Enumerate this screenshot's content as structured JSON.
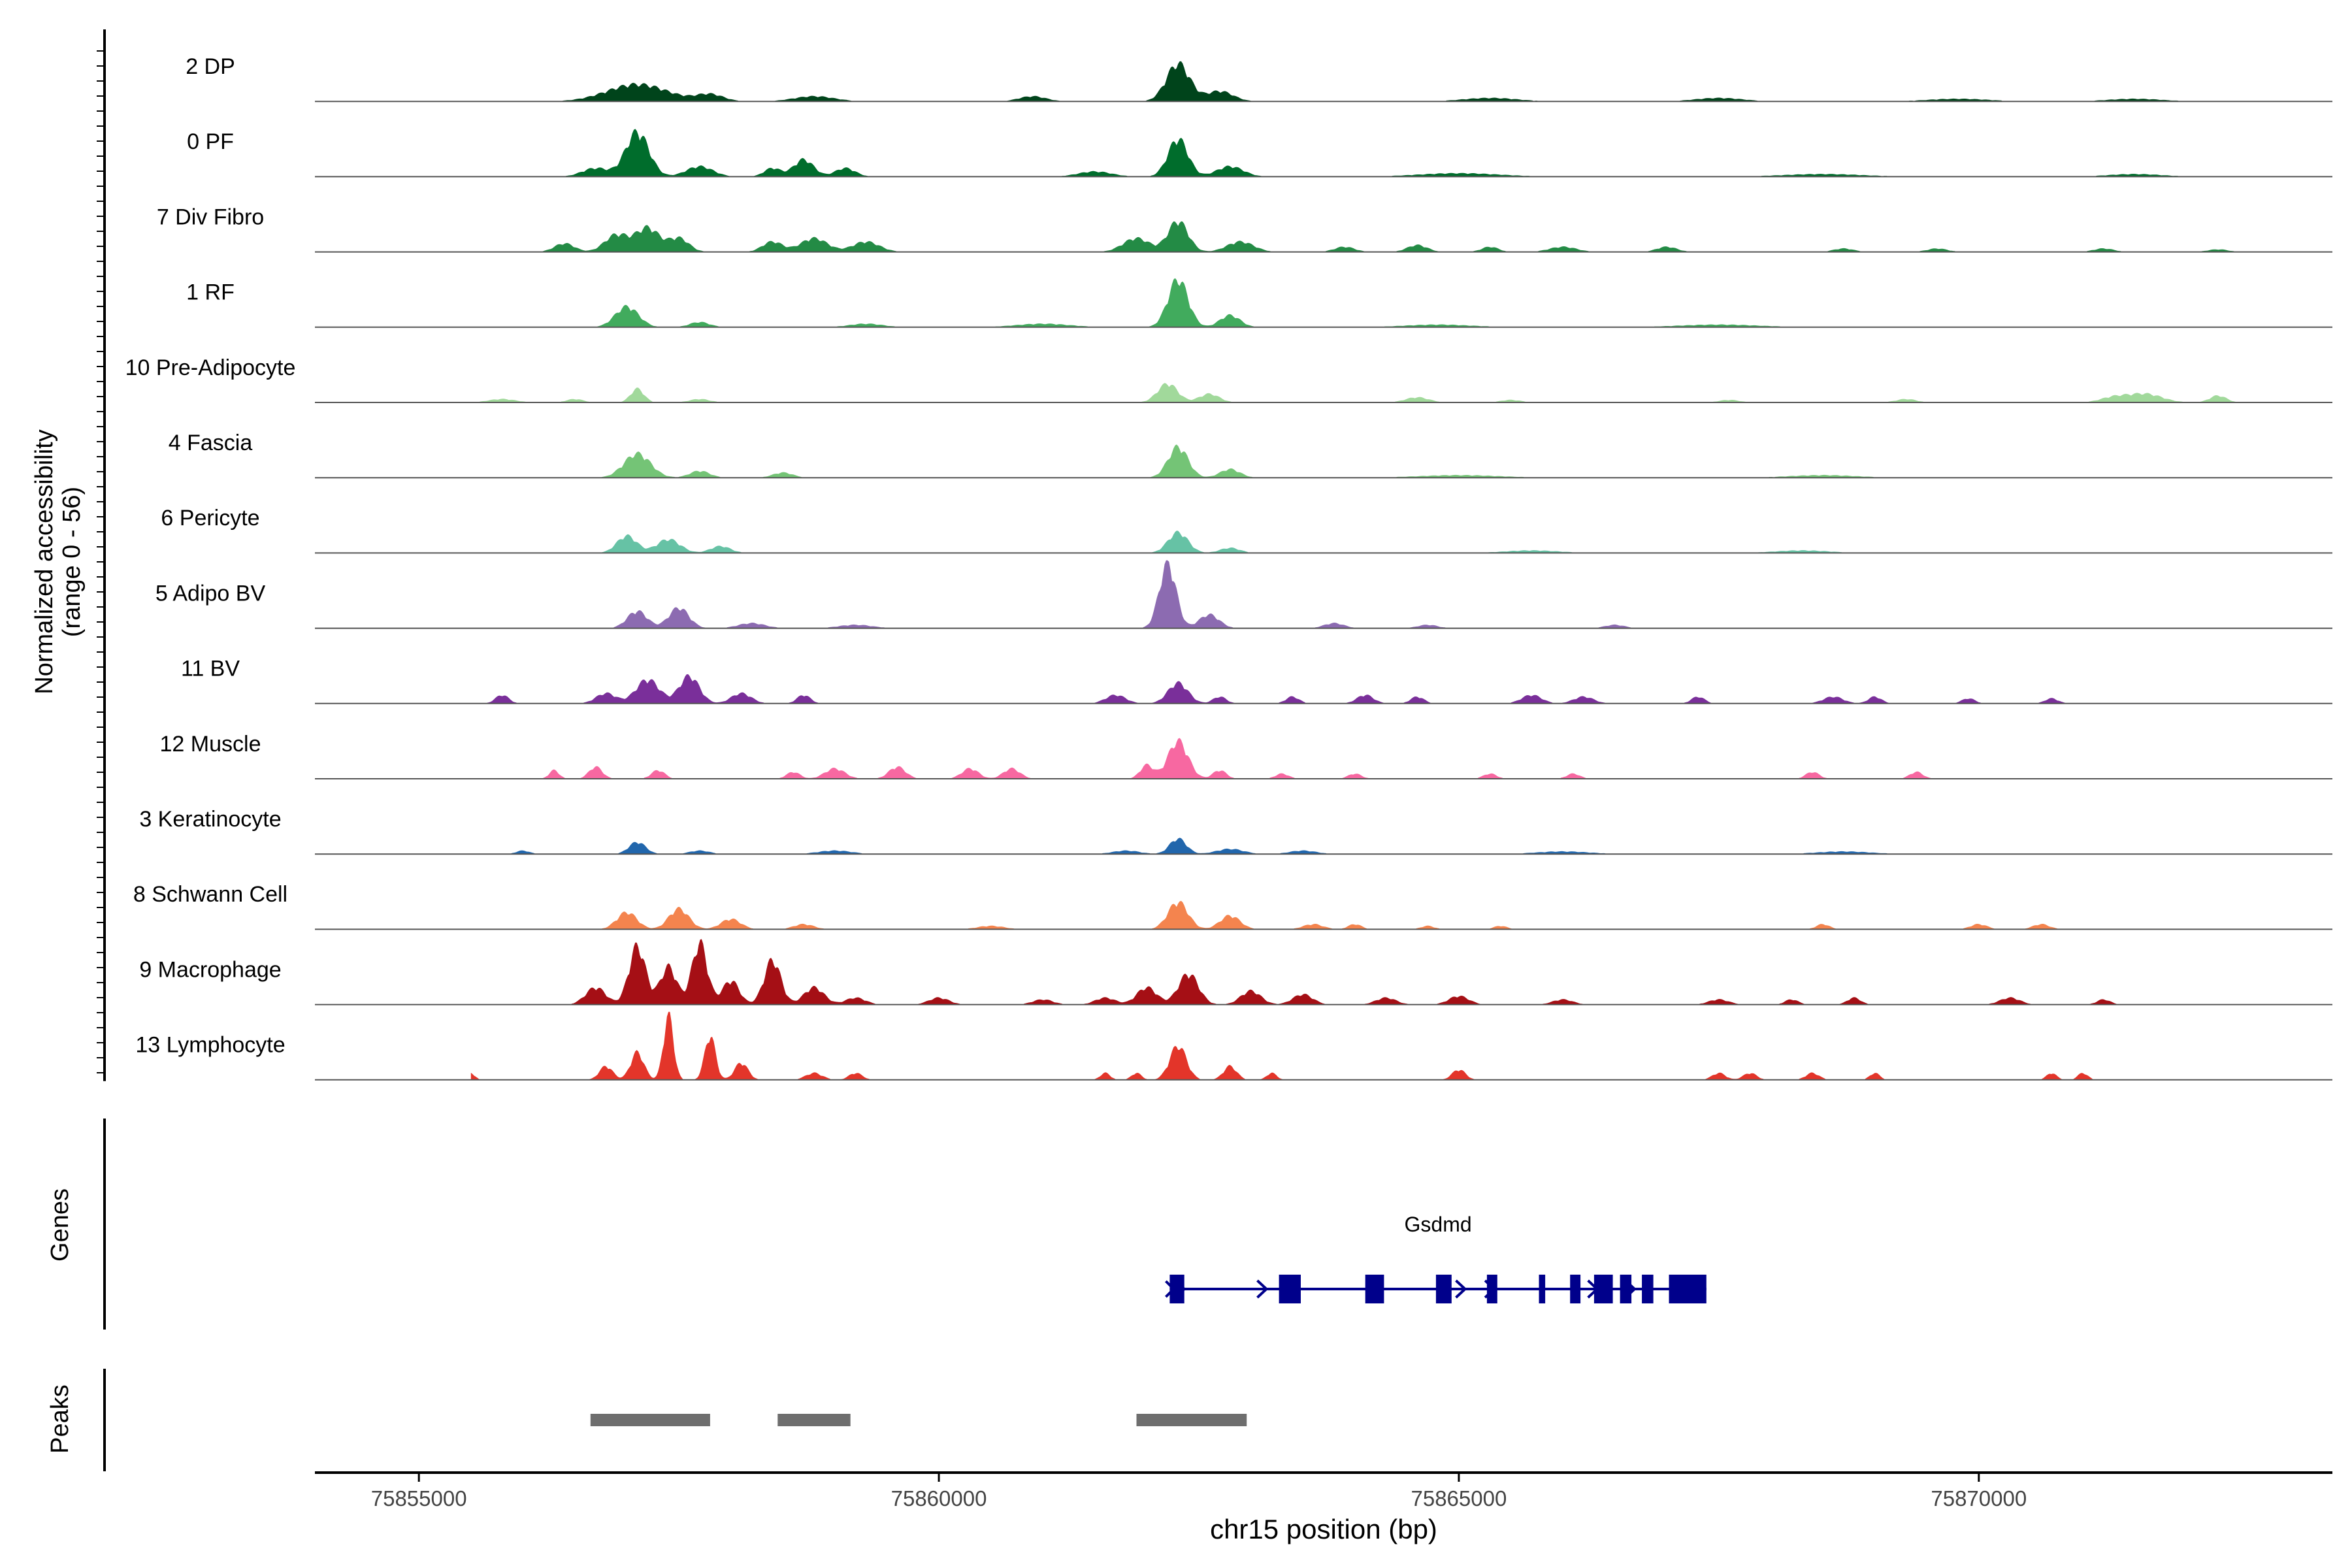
{
  "chart_data": {
    "type": "area",
    "title": "",
    "ylabel_line1": "Normalized accessibility",
    "ylabel_line2": "(range 0 - 56)",
    "genes_label": "Genes",
    "peaks_label": "Peaks",
    "xlabel": "chr15 position (bp)",
    "xlim": [
      75854000,
      75873400
    ],
    "ylim": [
      0,
      56
    ],
    "x_ticks": [
      75855000,
      75860000,
      75865000,
      75870000
    ],
    "x_tick_labels": [
      "75855000",
      "75860000",
      "75865000",
      "75870000"
    ],
    "series": [
      {
        "name": "2 DP",
        "color": "#00441b",
        "peaks": [
          [
            75857100,
            10,
            900
          ],
          [
            75857800,
            4,
            400
          ],
          [
            75858800,
            3,
            600
          ],
          [
            75860900,
            3,
            400
          ],
          [
            75862300,
            22,
            350
          ],
          [
            75862700,
            6,
            400
          ],
          [
            75865300,
            2,
            800
          ],
          [
            75867500,
            2,
            700
          ],
          [
            75869800,
            1.5,
            900
          ],
          [
            75871500,
            1.5,
            800
          ]
        ]
      },
      {
        "name": "0 PF",
        "color": "#006d2c",
        "peaks": [
          [
            75856700,
            5,
            400
          ],
          [
            75857100,
            26,
            350
          ],
          [
            75857700,
            6,
            400
          ],
          [
            75858400,
            5,
            250
          ],
          [
            75858700,
            10,
            300
          ],
          [
            75859100,
            5,
            300
          ],
          [
            75861500,
            3,
            500
          ],
          [
            75862300,
            22,
            300
          ],
          [
            75862800,
            6,
            400
          ],
          [
            75865000,
            2,
            1200
          ],
          [
            75868500,
            1.5,
            1200
          ],
          [
            75871500,
            1.5,
            800
          ]
        ]
      },
      {
        "name": "7 Div Fibro",
        "color": "#238b45",
        "peaks": [
          [
            75856400,
            5,
            300
          ],
          [
            75856900,
            10,
            350
          ],
          [
            75857200,
            14,
            350
          ],
          [
            75857500,
            8,
            300
          ],
          [
            75858400,
            6,
            300
          ],
          [
            75858800,
            8,
            400
          ],
          [
            75859300,
            6,
            400
          ],
          [
            75861900,
            8,
            400
          ],
          [
            75862300,
            18,
            300
          ],
          [
            75862900,
            6,
            400
          ],
          [
            75863900,
            3,
            300
          ],
          [
            75864600,
            4,
            300
          ],
          [
            75865300,
            3,
            250
          ],
          [
            75866000,
            3,
            400
          ],
          [
            75867000,
            3,
            300
          ],
          [
            75868700,
            2,
            300
          ],
          [
            75869600,
            2,
            300
          ],
          [
            75871200,
            2,
            300
          ],
          [
            75872300,
            1.5,
            300
          ]
        ]
      },
      {
        "name": "1 RF",
        "color": "#41ab5d",
        "peaks": [
          [
            75857000,
            12,
            350
          ],
          [
            75857700,
            3,
            300
          ],
          [
            75859300,
            2,
            500
          ],
          [
            75861000,
            2,
            800
          ],
          [
            75862300,
            28,
            300
          ],
          [
            75862800,
            7,
            300
          ],
          [
            75864800,
            1.5,
            1000
          ],
          [
            75867500,
            1.5,
            1200
          ]
        ]
      },
      {
        "name": "10 Pre-Adipocyte",
        "color": "#a1d99b",
        "peaks": [
          [
            75855800,
            2,
            400
          ],
          [
            75856500,
            2,
            250
          ],
          [
            75857100,
            8,
            200
          ],
          [
            75857700,
            2,
            300
          ],
          [
            75862200,
            11,
            300
          ],
          [
            75862600,
            5,
            300
          ],
          [
            75864600,
            3,
            350
          ],
          [
            75865500,
            1.5,
            300
          ],
          [
            75867600,
            1.5,
            300
          ],
          [
            75869300,
            2,
            300
          ],
          [
            75871300,
            3,
            400
          ],
          [
            75871600,
            5,
            500
          ],
          [
            75872300,
            4,
            250
          ]
        ]
      },
      {
        "name": "4 Fascia",
        "color": "#74c476",
        "peaks": [
          [
            75857100,
            14,
            400
          ],
          [
            75857700,
            4,
            300
          ],
          [
            75858500,
            3,
            300
          ],
          [
            75862300,
            18,
            300
          ],
          [
            75862800,
            5,
            300
          ],
          [
            75865000,
            1.5,
            1200
          ],
          [
            75868500,
            1.5,
            1000
          ]
        ]
      },
      {
        "name": "6 Pericyte",
        "color": "#66c2a5",
        "peaks": [
          [
            75857000,
            10,
            300
          ],
          [
            75857400,
            8,
            350
          ],
          [
            75857900,
            4,
            300
          ],
          [
            75862300,
            12,
            300
          ],
          [
            75862800,
            3,
            300
          ],
          [
            75865700,
            1.5,
            800
          ],
          [
            75868300,
            1.5,
            800
          ]
        ]
      },
      {
        "name": "5 Adipo BV",
        "color": "#8c6bb1",
        "peaks": [
          [
            75857100,
            10,
            300
          ],
          [
            75857500,
            12,
            300
          ],
          [
            75858200,
            3,
            400
          ],
          [
            75859200,
            2,
            500
          ],
          [
            75862200,
            38,
            250
          ],
          [
            75862600,
            8,
            300
          ],
          [
            75863800,
            3,
            300
          ],
          [
            75864700,
            2,
            300
          ],
          [
            75866500,
            2,
            300
          ]
        ]
      },
      {
        "name": "11 BV",
        "color": "#7a2f9a",
        "peaks": [
          [
            75855800,
            5,
            200
          ],
          [
            75856800,
            6,
            300
          ],
          [
            75857200,
            14,
            350
          ],
          [
            75857600,
            16,
            300
          ],
          [
            75858100,
            6,
            300
          ],
          [
            75858700,
            5,
            200
          ],
          [
            75861700,
            5,
            300
          ],
          [
            75862300,
            12,
            300
          ],
          [
            75862700,
            4,
            200
          ],
          [
            75863400,
            4,
            200
          ],
          [
            75864100,
            5,
            250
          ],
          [
            75864600,
            4,
            200
          ],
          [
            75865700,
            5,
            300
          ],
          [
            75866200,
            4,
            300
          ],
          [
            75867300,
            4,
            200
          ],
          [
            75868600,
            4,
            300
          ],
          [
            75869000,
            4,
            200
          ],
          [
            75869900,
            3,
            200
          ],
          [
            75870700,
            3,
            200
          ]
        ]
      },
      {
        "name": "12 Muscle",
        "color": "#f768a1",
        "peaks": [
          [
            75856300,
            5,
            150
          ],
          [
            75856700,
            7,
            200
          ],
          [
            75857300,
            5,
            200
          ],
          [
            75858600,
            4,
            200
          ],
          [
            75859000,
            6,
            300
          ],
          [
            75859600,
            7,
            250
          ],
          [
            75860300,
            6,
            250
          ],
          [
            75860700,
            6,
            250
          ],
          [
            75862000,
            8,
            200
          ],
          [
            75862300,
            22,
            300
          ],
          [
            75862700,
            5,
            200
          ],
          [
            75863300,
            3,
            200
          ],
          [
            75864000,
            3,
            200
          ],
          [
            75865300,
            3,
            200
          ],
          [
            75866100,
            3,
            200
          ],
          [
            75868400,
            4,
            200
          ],
          [
            75869400,
            4,
            200
          ]
        ]
      },
      {
        "name": "3 Keratinocyte",
        "color": "#2166ac",
        "peaks": [
          [
            75856000,
            2,
            200
          ],
          [
            75857100,
            7,
            250
          ],
          [
            75857700,
            2,
            300
          ],
          [
            75859000,
            2,
            500
          ],
          [
            75861800,
            2,
            400
          ],
          [
            75862300,
            9,
            250
          ],
          [
            75862800,
            3,
            400
          ],
          [
            75863500,
            2,
            400
          ],
          [
            75866000,
            1.5,
            800
          ],
          [
            75868700,
            1.5,
            800
          ]
        ]
      },
      {
        "name": "8 Schwann Cell",
        "color": "#f4844e",
        "peaks": [
          [
            75857000,
            10,
            300
          ],
          [
            75857500,
            12,
            300
          ],
          [
            75858000,
            6,
            300
          ],
          [
            75858700,
            3,
            300
          ],
          [
            75860500,
            2,
            400
          ],
          [
            75862300,
            16,
            300
          ],
          [
            75862800,
            8,
            300
          ],
          [
            75863600,
            3,
            300
          ],
          [
            75864000,
            3,
            200
          ],
          [
            75864700,
            2,
            200
          ],
          [
            75865400,
            2,
            200
          ],
          [
            75868500,
            3,
            200
          ],
          [
            75870000,
            3,
            250
          ],
          [
            75870600,
            3,
            250
          ]
        ]
      },
      {
        "name": "9 Macrophage",
        "color": "#a50f15",
        "peaks": [
          [
            75856700,
            10,
            300
          ],
          [
            75857100,
            34,
            250
          ],
          [
            75857400,
            22,
            250
          ],
          [
            75857700,
            36,
            230
          ],
          [
            75858000,
            14,
            250
          ],
          [
            75858400,
            26,
            250
          ],
          [
            75858800,
            10,
            300
          ],
          [
            75859200,
            4,
            300
          ],
          [
            75860000,
            4,
            300
          ],
          [
            75861000,
            3,
            300
          ],
          [
            75861600,
            4,
            300
          ],
          [
            75862000,
            10,
            300
          ],
          [
            75862400,
            18,
            300
          ],
          [
            75863000,
            8,
            300
          ],
          [
            75863500,
            6,
            300
          ],
          [
            75864300,
            4,
            300
          ],
          [
            75865000,
            5,
            300
          ],
          [
            75866000,
            3,
            300
          ],
          [
            75867500,
            3,
            300
          ],
          [
            75868200,
            3,
            200
          ],
          [
            75868800,
            4,
            200
          ],
          [
            75870300,
            4,
            300
          ],
          [
            75871200,
            3,
            200
          ]
        ]
      },
      {
        "name": "13 Lymphocyte",
        "color": "#e3352a",
        "peaks": [
          [
            75855500,
            4,
            120
          ],
          [
            75856800,
            8,
            200
          ],
          [
            75857100,
            16,
            200
          ],
          [
            75857400,
            38,
            150
          ],
          [
            75857800,
            26,
            160
          ],
          [
            75858100,
            10,
            200
          ],
          [
            75858800,
            4,
            250
          ],
          [
            75859200,
            4,
            200
          ],
          [
            75861600,
            4,
            150
          ],
          [
            75861900,
            4,
            150
          ],
          [
            75862300,
            20,
            250
          ],
          [
            75862800,
            8,
            200
          ],
          [
            75863200,
            4,
            150
          ],
          [
            75865000,
            6,
            200
          ],
          [
            75867500,
            4,
            200
          ],
          [
            75867800,
            4,
            200
          ],
          [
            75868400,
            4,
            200
          ],
          [
            75869000,
            4,
            150
          ],
          [
            75870700,
            4,
            150
          ],
          [
            75871000,
            4,
            150
          ]
        ]
      }
    ],
    "gene": {
      "name": "Gsdmd",
      "color": "#00008b",
      "strand": "+",
      "start": 75862220,
      "end": 75867380,
      "exons": [
        [
          75862220,
          75862360
        ],
        [
          75863270,
          75863480
        ],
        [
          75864100,
          75864280
        ],
        [
          75864780,
          75864930
        ],
        [
          75865270,
          75865370
        ],
        [
          75865770,
          75865830
        ],
        [
          75866070,
          75866170
        ],
        [
          75866300,
          75866480
        ],
        [
          75866550,
          75866660
        ],
        [
          75866760,
          75866870
        ],
        [
          75867020,
          75867380
        ]
      ],
      "arrow_positions": [
        75862360,
        75863150,
        75865060,
        75865340,
        75866330,
        75866690
      ]
    },
    "peaks": [
      [
        75856650,
        75857800
      ],
      [
        75858450,
        75859150
      ],
      [
        75861900,
        75862960
      ]
    ],
    "peak_color": "#6e6e6e"
  }
}
